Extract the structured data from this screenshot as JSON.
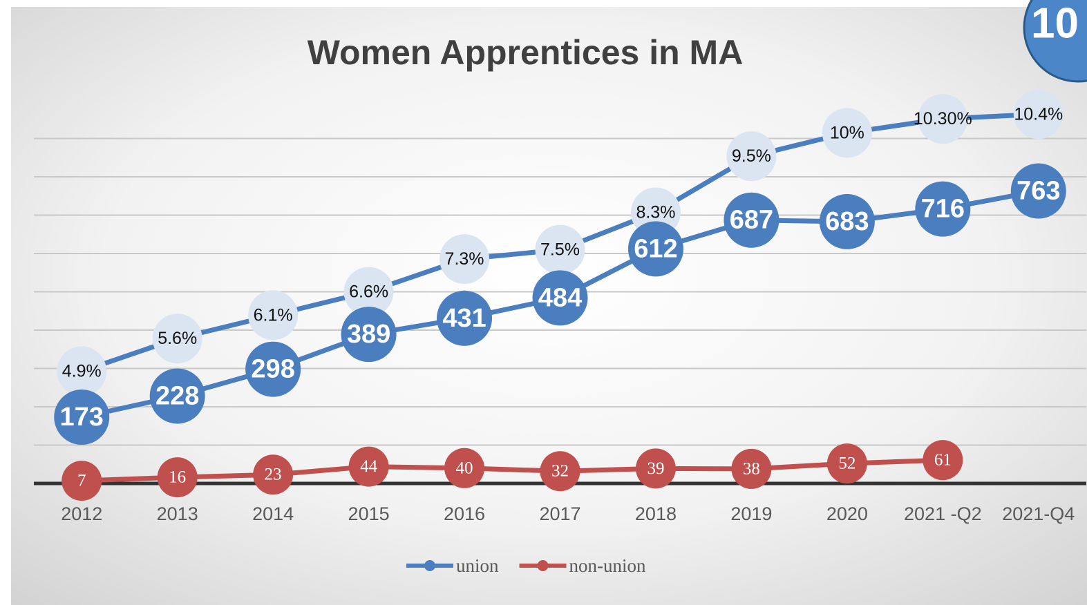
{
  "chart_data": {
    "type": "line",
    "title": "Women Apprentices in MA",
    "badge": "10",
    "categories": [
      "2012",
      "2013",
      "2014",
      "2015",
      "2016",
      "2017",
      "2018",
      "2019",
      "2020",
      "2021 -Q2",
      "2021-Q4"
    ],
    "series": [
      {
        "name": "union",
        "color": "#4a7ebf",
        "values": [
          173,
          228,
          298,
          389,
          431,
          484,
          612,
          687,
          683,
          716,
          763
        ]
      },
      {
        "name": "non-union",
        "color": "#c0504d",
        "values": [
          7,
          16,
          23,
          44,
          40,
          32,
          39,
          38,
          52,
          61,
          null
        ]
      },
      {
        "color": "#4a7ebf",
        "marker_color": "#dbe5f1",
        "axis": "y2",
        "values": [
          4.9,
          5.6,
          6.1,
          6.6,
          7.3,
          7.5,
          8.3,
          9.5,
          10,
          10.3,
          10.4
        ],
        "value_labels": [
          "4.9%",
          "5.6%",
          "6.1%",
          "6.6%",
          "7.3%",
          "7.5%",
          "8.3%",
          "9.5%",
          "10%",
          "10.30%",
          "10.4%"
        ]
      }
    ],
    "ylim": [
      0,
      1000
    ],
    "yticks": [
      0,
      100,
      200,
      300,
      400,
      500,
      600,
      700,
      800,
      900
    ],
    "y2lim": [
      2.5,
      10.7
    ],
    "grid": true,
    "legend": "bottom"
  }
}
